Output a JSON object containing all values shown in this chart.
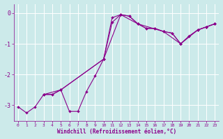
{
  "xlabel": "Windchill (Refroidissement éolien,°C)",
  "bg_color": "#cceaea",
  "line_color": "#8b008b",
  "grid_color": "#b0d8d8",
  "tick_label_color": "#8b008b",
  "xlabel_color": "#8b008b",
  "xlim": [
    -0.5,
    23.5
  ],
  "ylim": [
    -3.5,
    0.3
  ],
  "yticks": [
    0,
    -1,
    -2,
    -3
  ],
  "xticks": [
    0,
    1,
    2,
    3,
    4,
    5,
    6,
    7,
    8,
    9,
    10,
    11,
    12,
    13,
    14,
    15,
    16,
    17,
    18,
    19,
    20,
    21,
    22,
    23
  ],
  "curve1_x": [
    0,
    1,
    2,
    3,
    4,
    5,
    6,
    7,
    8,
    9,
    10,
    11,
    12,
    13,
    14,
    15,
    16,
    17,
    18,
    19,
    20,
    21,
    22,
    23
  ],
  "curve1_y": [
    -3.05,
    -3.25,
    -3.05,
    -2.65,
    -2.65,
    -2.5,
    -3.2,
    -3.2,
    -2.55,
    -2.05,
    -1.5,
    -0.15,
    -0.05,
    -0.1,
    -0.35,
    -0.5,
    -0.5,
    -0.6,
    -0.65,
    -1.0,
    -0.75,
    -0.55,
    -0.45,
    -0.35
  ],
  "curve2_x": [
    3,
    4,
    5,
    10,
    11,
    12,
    13,
    14,
    15,
    16,
    17,
    18,
    19,
    20,
    21,
    22,
    23
  ],
  "curve2_y": [
    -2.65,
    -2.65,
    -2.5,
    -1.5,
    -0.3,
    -0.05,
    -0.1,
    -0.35,
    -0.5,
    -0.5,
    -0.6,
    -0.65,
    -1.0,
    -0.75,
    -0.55,
    -0.45,
    -0.35
  ],
  "curve3_x": [
    3,
    5,
    10,
    12,
    14,
    17,
    19,
    21,
    22,
    23
  ],
  "curve3_y": [
    -2.65,
    -2.5,
    -1.5,
    -0.05,
    -0.35,
    -0.6,
    -1.0,
    -0.55,
    -0.45,
    -0.35
  ],
  "marker_size": 2.0,
  "line_width": 0.8
}
